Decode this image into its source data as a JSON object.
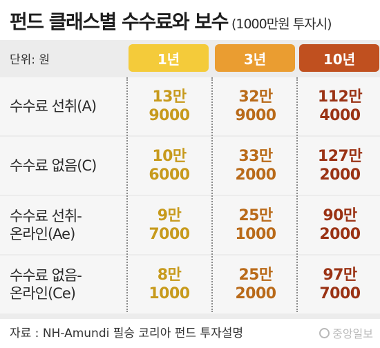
{
  "title": "펀드 클래스별 수수료와 보수",
  "subtitle": "(1000만원 투자시)",
  "unit_label": "단위: 원",
  "chart_data": {
    "type": "table",
    "columns": [
      "1년",
      "3년",
      "10년"
    ],
    "rows": [
      {
        "label_lines": [
          "수수료 선취(A)"
        ],
        "cells": [
          [
            "13만",
            "9000"
          ],
          [
            "32만",
            "9000"
          ],
          [
            "112만",
            "4000"
          ]
        ]
      },
      {
        "label_lines": [
          "수수료 없음(C)"
        ],
        "cells": [
          [
            "10만",
            "6000"
          ],
          [
            "33만",
            "2000"
          ],
          [
            "127만",
            "2000"
          ]
        ]
      },
      {
        "label_lines": [
          "수수료 선취-",
          "온라인(Ae)"
        ],
        "cells": [
          [
            "9만",
            "7000"
          ],
          [
            "25만",
            "1000"
          ],
          [
            "90만",
            "2000"
          ]
        ]
      },
      {
        "label_lines": [
          "수수료 없음-",
          "온라인(Ce)"
        ],
        "cells": [
          [
            "8만",
            "1000"
          ],
          [
            "25만",
            "2000"
          ],
          [
            "97만",
            "7000"
          ]
        ]
      }
    ],
    "colors": {
      "1년": "#f4cb3a",
      "3년": "#ea9d31",
      "10년": "#c0501f"
    }
  },
  "source": "자료 : NH-Amundi 필승 코리아 펀드 투자설명",
  "logo": "중앙일보"
}
